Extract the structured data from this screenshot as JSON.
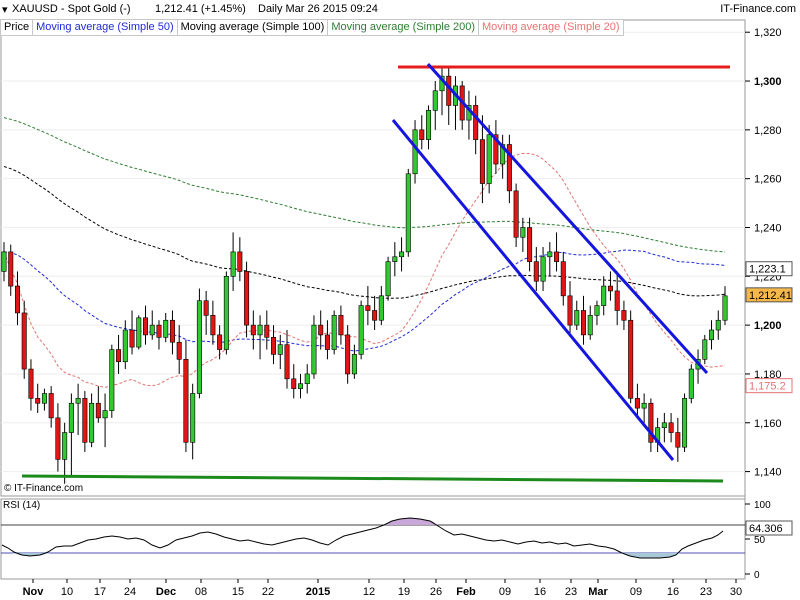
{
  "header": {
    "symbol_line": "XAUUSD - Spot Gold (-)",
    "price_change": "1,212.41 (+1.45%)",
    "period_date": "Daily  Mar 26 2015 09:24",
    "brand": "IT-Finance.com"
  },
  "legend": [
    {
      "label": "Price",
      "color": "#000000"
    },
    {
      "label": "Moving average (Simple 50)",
      "color": "#1f2bd8"
    },
    {
      "label": "Moving average (Simple 100)",
      "color": "#000000"
    },
    {
      "label": "Moving average (Simple 200)",
      "color": "#2e7d32"
    },
    {
      "label": "Moving average (Simple 20)",
      "color": "#e57373"
    }
  ],
  "copyright": "© IT-Finance.com",
  "colors": {
    "up": "#32c832",
    "down": "#e01616",
    "frame": "#9a9a9a"
  },
  "chart_data": [
    {
      "type": "candlestick",
      "symbol": "XAUUSD",
      "ylim": [
        1130,
        1325
      ],
      "y_ticks": [
        "1,320",
        "1,300",
        "1,280",
        "1,260",
        "1,240",
        "1,220",
        "1,200",
        "1,180",
        "1,160",
        "1,140"
      ],
      "x_tick_labels": [
        "Nov",
        "10",
        "17",
        "24",
        "Dec",
        "08",
        "15",
        "22",
        "2015",
        "12",
        "19",
        "26",
        "Feb",
        "09",
        "16",
        "23",
        "Mar",
        "09",
        "16",
        "23",
        "30"
      ],
      "price_labels": {
        "sma100": "1,223.1",
        "last": "1,212.41",
        "sma20": "1,175.2"
      },
      "candles": [
        [
          1222,
          1234,
          1218,
          1230
        ],
        [
          1230,
          1233,
          1212,
          1216
        ],
        [
          1216,
          1222,
          1200,
          1205
        ],
        [
          1205,
          1210,
          1178,
          1182
        ],
        [
          1182,
          1186,
          1165,
          1170
        ],
        [
          1170,
          1176,
          1164,
          1168
        ],
        [
          1168,
          1174,
          1165,
          1172
        ],
        [
          1172,
          1175,
          1158,
          1162
        ],
        [
          1162,
          1168,
          1140,
          1145
        ],
        [
          1145,
          1160,
          1135,
          1156
        ],
        [
          1156,
          1172,
          1138,
          1168
        ],
        [
          1168,
          1176,
          1155,
          1170
        ],
        [
          1170,
          1173,
          1148,
          1152
        ],
        [
          1152,
          1172,
          1150,
          1168
        ],
        [
          1168,
          1175,
          1160,
          1162
        ],
        [
          1162,
          1172,
          1150,
          1165
        ],
        [
          1165,
          1192,
          1162,
          1190
        ],
        [
          1190,
          1196,
          1180,
          1185
        ],
        [
          1185,
          1202,
          1182,
          1198
        ],
        [
          1198,
          1206,
          1188,
          1191
        ],
        [
          1191,
          1204,
          1190,
          1203
        ],
        [
          1203,
          1208,
          1192,
          1196
        ],
        [
          1196,
          1206,
          1194,
          1200
        ],
        [
          1200,
          1202,
          1190,
          1195
        ],
        [
          1195,
          1205,
          1193,
          1202
        ],
        [
          1202,
          1206,
          1188,
          1193
        ],
        [
          1193,
          1200,
          1180,
          1186
        ],
        [
          1186,
          1194,
          1148,
          1152
        ],
        [
          1152,
          1176,
          1145,
          1172
        ],
        [
          1172,
          1215,
          1170,
          1210
        ],
        [
          1210,
          1214,
          1196,
          1204
        ],
        [
          1204,
          1210,
          1192,
          1196
        ],
        [
          1196,
          1200,
          1186,
          1190
        ],
        [
          1190,
          1222,
          1188,
          1220
        ],
        [
          1220,
          1238,
          1214,
          1230
        ],
        [
          1230,
          1236,
          1218,
          1222
        ],
        [
          1222,
          1226,
          1195,
          1200
        ],
        [
          1200,
          1206,
          1190,
          1196
        ],
        [
          1196,
          1204,
          1186,
          1200
        ],
        [
          1200,
          1206,
          1190,
          1195
        ],
        [
          1195,
          1200,
          1184,
          1188
        ],
        [
          1188,
          1196,
          1182,
          1192
        ],
        [
          1192,
          1198,
          1174,
          1178
        ],
        [
          1178,
          1184,
          1170,
          1174
        ],
        [
          1174,
          1180,
          1170,
          1176
        ],
        [
          1176,
          1184,
          1172,
          1180
        ],
        [
          1180,
          1204,
          1178,
          1200
        ],
        [
          1200,
          1206,
          1190,
          1196
        ],
        [
          1196,
          1202,
          1186,
          1190
        ],
        [
          1190,
          1206,
          1188,
          1204
        ],
        [
          1204,
          1208,
          1192,
          1196
        ],
        [
          1196,
          1200,
          1176,
          1180
        ],
        [
          1180,
          1192,
          1178,
          1188
        ],
        [
          1188,
          1210,
          1186,
          1208
        ],
        [
          1208,
          1216,
          1200,
          1206
        ],
        [
          1206,
          1212,
          1198,
          1202
        ],
        [
          1202,
          1216,
          1200,
          1212
        ],
        [
          1212,
          1228,
          1210,
          1226
        ],
        [
          1226,
          1234,
          1220,
          1228
        ],
        [
          1228,
          1236,
          1222,
          1230
        ],
        [
          1230,
          1264,
          1228,
          1262
        ],
        [
          1262,
          1284,
          1258,
          1280
        ],
        [
          1280,
          1286,
          1272,
          1276
        ],
        [
          1276,
          1290,
          1272,
          1288
        ],
        [
          1288,
          1300,
          1280,
          1296
        ],
        [
          1296,
          1306,
          1286,
          1302
        ],
        [
          1302,
          1306,
          1282,
          1290
        ],
        [
          1290,
          1302,
          1280,
          1298
        ],
        [
          1298,
          1300,
          1280,
          1284
        ],
        [
          1284,
          1296,
          1276,
          1290
        ],
        [
          1290,
          1294,
          1270,
          1276
        ],
        [
          1276,
          1286,
          1250,
          1258
        ],
        [
          1258,
          1282,
          1254,
          1278
        ],
        [
          1278,
          1284,
          1262,
          1266
        ],
        [
          1266,
          1278,
          1260,
          1274
        ],
        [
          1274,
          1278,
          1250,
          1255
        ],
        [
          1255,
          1258,
          1232,
          1236
        ],
        [
          1236,
          1244,
          1230,
          1240
        ],
        [
          1240,
          1244,
          1222,
          1226
        ],
        [
          1226,
          1232,
          1214,
          1218
        ],
        [
          1218,
          1232,
          1214,
          1228
        ],
        [
          1228,
          1234,
          1220,
          1230
        ],
        [
          1230,
          1238,
          1222,
          1226
        ],
        [
          1226,
          1230,
          1208,
          1212
        ],
        [
          1212,
          1218,
          1196,
          1200
        ],
        [
          1200,
          1210,
          1198,
          1206
        ],
        [
          1206,
          1212,
          1192,
          1196
        ],
        [
          1196,
          1208,
          1194,
          1204
        ],
        [
          1204,
          1210,
          1200,
          1208
        ],
        [
          1208,
          1220,
          1204,
          1216
        ],
        [
          1216,
          1222,
          1210,
          1214
        ],
        [
          1214,
          1222,
          1200,
          1206
        ],
        [
          1206,
          1210,
          1198,
          1202
        ],
        [
          1202,
          1206,
          1168,
          1170
        ],
        [
          1170,
          1176,
          1162,
          1166
        ],
        [
          1166,
          1172,
          1160,
          1168
        ],
        [
          1168,
          1170,
          1148,
          1152
        ],
        [
          1152,
          1162,
          1148,
          1158
        ],
        [
          1158,
          1164,
          1152,
          1160
        ],
        [
          1160,
          1164,
          1152,
          1156
        ],
        [
          1156,
          1162,
          1144,
          1150
        ],
        [
          1150,
          1172,
          1148,
          1170
        ],
        [
          1170,
          1184,
          1168,
          1182
        ],
        [
          1182,
          1190,
          1176,
          1186
        ],
        [
          1186,
          1196,
          1184,
          1194
        ],
        [
          1194,
          1202,
          1190,
          1198
        ],
        [
          1198,
          1206,
          1194,
          1202
        ],
        [
          1202,
          1216,
          1200,
          1212
        ]
      ],
      "indicator": {
        "name": "RSI (14)",
        "value": "64.306",
        "y_ticks": [
          "100",
          "50",
          "0"
        ],
        "levels": [
          70,
          30
        ]
      }
    }
  ]
}
